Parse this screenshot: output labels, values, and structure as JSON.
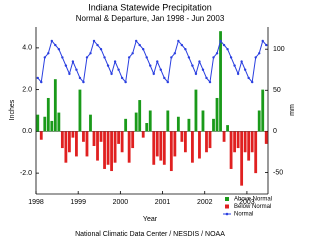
{
  "chart_data": {
    "type": "bar",
    "title": "Indiana Statewide Precipitation",
    "subtitle": "Normal & Departure, Jan 1998 - Jun 2003",
    "x_label": "Year",
    "y_label": "Inches",
    "y2_label": "mm",
    "footer": "National Climatic Data Center / NESDIS / NOAA",
    "categories": [
      "1998",
      null,
      null,
      null,
      null,
      null,
      null,
      null,
      null,
      null,
      null,
      null,
      "1999",
      null,
      null,
      null,
      null,
      null,
      null,
      null,
      null,
      null,
      null,
      null,
      "2000",
      null,
      null,
      null,
      null,
      null,
      null,
      null,
      null,
      null,
      null,
      null,
      "2001",
      null,
      null,
      null,
      null,
      null,
      null,
      null,
      null,
      null,
      null,
      null,
      "2002",
      null,
      null,
      null,
      null,
      null,
      null,
      null,
      null,
      null,
      null,
      null,
      "2003",
      null,
      null,
      null,
      null,
      null
    ],
    "series": [
      {
        "name": "Above Normal",
        "color": "#1a9a1a",
        "values": [
          0.8,
          null,
          0.7,
          1.6,
          0.5,
          2.5,
          0.9,
          null,
          null,
          null,
          null,
          null,
          2.0,
          null,
          null,
          0.8,
          null,
          null,
          null,
          null,
          null,
          null,
          null,
          null,
          null,
          0.6,
          null,
          null,
          0.9,
          1.5,
          null,
          0.4,
          1.0,
          null,
          null,
          null,
          null,
          1.0,
          null,
          null,
          0.7,
          null,
          null,
          0.6,
          null,
          2.0,
          null,
          1.0,
          null,
          null,
          0.6,
          1.6,
          4.8,
          null,
          0.3,
          null,
          null,
          null,
          null,
          null,
          null,
          null,
          null,
          1.0,
          2.0,
          null
        ]
      },
      {
        "name": "Below Normal",
        "color": "#e02020",
        "values": [
          null,
          -0.4,
          null,
          null,
          null,
          null,
          null,
          -0.8,
          -1.5,
          -1.0,
          -0.3,
          -1.2,
          null,
          -0.5,
          -1.2,
          null,
          -0.7,
          -1.4,
          -0.5,
          -1.8,
          -1.6,
          -1.9,
          -1.5,
          -0.6,
          -1.0,
          null,
          -1.5,
          -0.8,
          null,
          null,
          -0.3,
          null,
          null,
          -1.6,
          -1.2,
          -1.4,
          -1.6,
          null,
          -1.9,
          -1.2,
          null,
          -0.5,
          -1.0,
          null,
          -1.5,
          null,
          -1.3,
          null,
          -1.0,
          -0.8,
          null,
          null,
          null,
          -0.5,
          null,
          -1.8,
          -1.0,
          -0.8,
          -2.6,
          -1.0,
          -1.4,
          -1.0,
          -2.0,
          null,
          null,
          -0.6
        ]
      },
      {
        "name": "Normal",
        "color": "#2a3fe0",
        "axis": "y2",
        "values": [
          65,
          60,
          90,
          95,
          110,
          105,
          100,
          90,
          80,
          70,
          85,
          75,
          65,
          60,
          90,
          95,
          110,
          105,
          100,
          90,
          80,
          70,
          85,
          75,
          65,
          60,
          90,
          95,
          110,
          105,
          100,
          90,
          80,
          70,
          85,
          75,
          65,
          60,
          90,
          95,
          110,
          105,
          100,
          90,
          80,
          70,
          85,
          75,
          65,
          60,
          90,
          95,
          110,
          105,
          100,
          90,
          80,
          70,
          85,
          75,
          65,
          60,
          90,
          95,
          110,
          105
        ]
      }
    ],
    "ylim": [
      -3,
      5
    ],
    "yticks": [
      {
        "value": -2,
        "label": "-2.0"
      },
      {
        "value": 0,
        "label": "0.0"
      },
      {
        "value": 2,
        "label": "2.0"
      },
      {
        "value": 4,
        "label": "4.0"
      }
    ],
    "y2lim": [
      -76.2,
      127
    ],
    "y2ticks": [
      -50,
      0,
      50,
      100
    ],
    "legend": "lower right"
  }
}
